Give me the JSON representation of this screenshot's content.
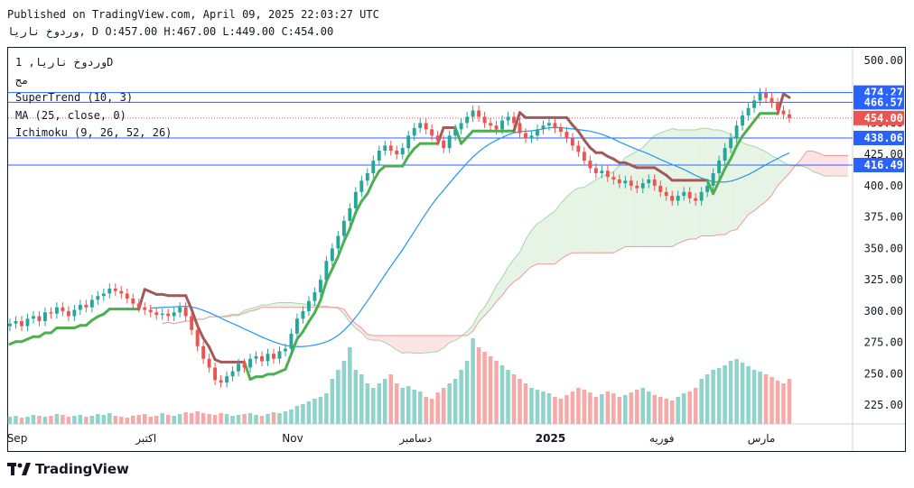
{
  "header": {
    "published": "Published on TradingView.com, April 09, 2025 22:03:27 UTC",
    "ohlc_line": "وردوخ ناريا, D O:457.00 H:467.00 L:449.00 C:454.00"
  },
  "legend": {
    "symbol": "وردوخ ناريا, 1D",
    "exchange": "مج",
    "supertrend": "SuperTrend (10, 3)",
    "ma": "MA (25, close, 0)",
    "ichimoku": "Ichimoku (9, 26, 52, 26)"
  },
  "branding": {
    "name": "TradingView",
    "logo_icon": "tradingview-logo-icon"
  },
  "colors": {
    "up": "#26a69a",
    "down": "#ef5350",
    "supertrend_up": "#4caf50",
    "supertrend_down": "#a05a5a",
    "ma": "#2196f3",
    "axis_line": "#2962ff",
    "cloud_up": "#e6f4e6",
    "cloud_down": "#fde3e3"
  },
  "chart_data": {
    "type": "candlestick",
    "y_range": [
      210,
      510
    ],
    "y_ticks": [
      225,
      250,
      275,
      300,
      325,
      350,
      375,
      400,
      425,
      450,
      475,
      500
    ],
    "y_tick_labels": [
      "225.00",
      "250.00",
      "275.00",
      "300.00",
      "325.00",
      "350.00",
      "375.00",
      "400.00",
      "425.00",
      "450.00",
      "475.00",
      "500.00"
    ],
    "x_labels": [
      {
        "label": "Sep",
        "index": 0
      },
      {
        "label": "اكتبر",
        "index": 22,
        "bold": false
      },
      {
        "label": "Nov",
        "index": 47
      },
      {
        "label": "دسامبر",
        "index": 68
      },
      {
        "label": "2025",
        "index": 91,
        "bold": true
      },
      {
        "label": "فوريه",
        "index": 110
      },
      {
        "label": "مارس",
        "index": 127
      }
    ],
    "price_labels": [
      {
        "text": "474.27",
        "value": 474.27,
        "kind": "line"
      },
      {
        "text": "466.57",
        "value": 466.57,
        "kind": "line"
      },
      {
        "text": "454.00",
        "value": 454.0,
        "kind": "last"
      },
      {
        "text": "438.06",
        "value": 438.06,
        "kind": "line"
      },
      {
        "text": "416.49",
        "value": 416.49,
        "kind": "line"
      }
    ],
    "close": [
      290,
      292,
      288,
      294,
      296,
      292,
      299,
      298,
      303,
      300,
      296,
      301,
      305,
      303,
      309,
      312,
      314,
      318,
      316,
      314,
      310,
      306,
      303,
      301,
      299,
      297,
      298,
      296,
      299,
      303,
      296,
      285,
      272,
      262,
      255,
      245,
      243,
      248,
      252,
      258,
      255,
      262,
      264,
      260,
      266,
      262,
      268,
      270,
      282,
      294,
      300,
      308,
      315,
      325,
      340,
      350,
      360,
      372,
      382,
      395,
      404,
      410,
      420,
      428,
      432,
      428,
      425,
      430,
      440,
      446,
      450,
      445,
      440,
      436,
      430,
      440,
      445,
      450,
      455,
      460,
      455,
      450,
      448,
      445,
      452,
      455,
      450,
      442,
      438,
      440,
      445,
      448,
      450,
      446,
      443,
      438,
      432,
      427,
      420,
      414,
      410,
      412,
      407,
      405,
      402,
      404,
      400,
      398,
      402,
      405,
      400,
      395,
      392,
      388,
      392,
      395,
      390,
      388,
      395,
      400,
      410,
      420,
      430,
      438,
      448,
      456,
      462,
      468,
      474,
      470,
      466,
      460,
      457,
      454
    ],
    "open": [
      288,
      290,
      292,
      288,
      294,
      296,
      292,
      299,
      298,
      303,
      300,
      296,
      301,
      305,
      303,
      309,
      312,
      314,
      318,
      316,
      314,
      310,
      306,
      303,
      301,
      299,
      297,
      298,
      296,
      299,
      303,
      296,
      285,
      272,
      262,
      255,
      245,
      243,
      248,
      252,
      258,
      255,
      262,
      264,
      260,
      266,
      262,
      268,
      270,
      282,
      294,
      300,
      308,
      315,
      325,
      340,
      350,
      360,
      372,
      382,
      395,
      404,
      410,
      420,
      428,
      432,
      428,
      425,
      430,
      440,
      446,
      450,
      445,
      440,
      436,
      430,
      440,
      445,
      450,
      455,
      460,
      455,
      450,
      448,
      445,
      452,
      455,
      450,
      442,
      438,
      440,
      445,
      448,
      450,
      446,
      443,
      438,
      432,
      427,
      420,
      414,
      410,
      412,
      407,
      405,
      402,
      404,
      400,
      398,
      402,
      405,
      400,
      395,
      392,
      388,
      392,
      395,
      390,
      388,
      395,
      400,
      410,
      420,
      430,
      438,
      448,
      456,
      462,
      468,
      474,
      470,
      466,
      460,
      457
    ],
    "volume": [
      8,
      9,
      7,
      8,
      10,
      9,
      8,
      9,
      11,
      10,
      8,
      9,
      10,
      8,
      9,
      11,
      10,
      12,
      9,
      8,
      7,
      9,
      10,
      11,
      8,
      9,
      12,
      10,
      9,
      11,
      13,
      12,
      14,
      12,
      11,
      10,
      12,
      11,
      9,
      10,
      11,
      12,
      10,
      9,
      11,
      13,
      12,
      14,
      16,
      20,
      22,
      25,
      28,
      30,
      34,
      50,
      60,
      70,
      85,
      60,
      55,
      45,
      40,
      45,
      50,
      55,
      45,
      40,
      42,
      38,
      36,
      30,
      28,
      35,
      40,
      45,
      50,
      60,
      70,
      95,
      85,
      80,
      75,
      70,
      65,
      60,
      55,
      50,
      45,
      40,
      38,
      36,
      34,
      30,
      28,
      32,
      36,
      40,
      38,
      35,
      30,
      33,
      36,
      34,
      30,
      32,
      35,
      38,
      40,
      36,
      32,
      30,
      28,
      26,
      30,
      34,
      36,
      40,
      50,
      55,
      60,
      62,
      65,
      70,
      72,
      68,
      64,
      60,
      58,
      55,
      52,
      48,
      45,
      50
    ]
  }
}
